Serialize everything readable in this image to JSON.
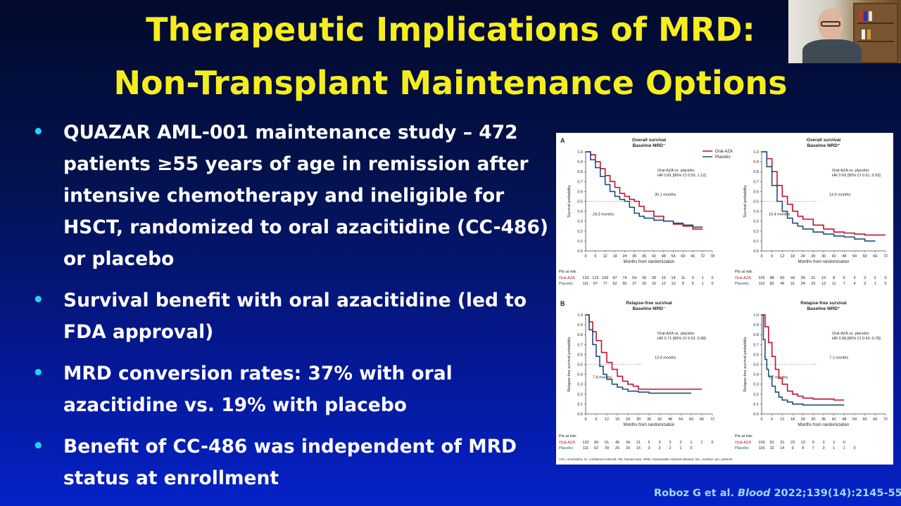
{
  "slide": {
    "title_line1": "Therapeutic Implications of MRD:",
    "title_line2": "Non-Transplant Maintenance Options",
    "bullets": [
      "QUAZAR AML-001 maintenance study – 472 patients ≥55 years of age in remission after intensive chemotherapy and ineligible for HSCT, randomized to oral azacitidine (CC-486) or placebo",
      "Survival benefit with oral azacitidine (led to FDA approval)",
      "MRD conversion rates: 37% with oral azacitidine vs. 19% with placebo",
      "Benefit of CC-486 was independent of MRD status at enrollment"
    ],
    "bullet_symbol": "•",
    "citation": {
      "authors": "Roboz G et al.",
      "journal": "Blood",
      "ref": "2022;139(14):2145-55"
    }
  },
  "colors": {
    "title": "#f6ee1c",
    "bullet_dot": "#22d3f2",
    "oral_aza": "#c8102e",
    "placebo": "#1f4e79",
    "citation": "#9fd8ff"
  },
  "figure": {
    "legend": [
      "Oral-AZA",
      "Placebo"
    ],
    "footnote": "AZA, azacitidine; CI, confidence interval; HR, hazard ratio; MRD, measurable residual disease; No., number; pts, patients.",
    "risk_header": "Pts at risk:",
    "risk_labels": [
      "Oral-AZA",
      "Placebo"
    ],
    "panel_a_label": "A",
    "panel_b_label": "B"
  },
  "chart_data": [
    {
      "type": "line",
      "title": "Overall survival Baseline MRD⁻",
      "xlabel": "Months from randomization",
      "ylabel": "Survival probability",
      "xlim": [
        0,
        78
      ],
      "ylim": [
        0,
        1.0
      ],
      "xticks": [
        0,
        6,
        12,
        18,
        24,
        30,
        36,
        42,
        48,
        54,
        60,
        66,
        72,
        78
      ],
      "yticks": [
        0,
        0.1,
        0.2,
        0.3,
        0.4,
        0.5,
        0.6,
        0.7,
        0.8,
        0.9,
        1.0
      ],
      "annotation": "Oral-AZA vs. placebo: HR 0.81 [95% CI 0.59, 1.12]",
      "medians": [
        "30.1 months",
        "24.3 months"
      ],
      "series": [
        {
          "name": "Oral-AZA",
          "x": [
            0,
            3,
            6,
            9,
            12,
            15,
            18,
            21,
            24,
            27,
            30,
            33,
            36,
            42,
            48,
            54,
            60,
            66,
            72
          ],
          "y": [
            1.0,
            0.97,
            0.9,
            0.83,
            0.76,
            0.7,
            0.64,
            0.58,
            0.55,
            0.52,
            0.5,
            0.45,
            0.4,
            0.35,
            0.3,
            0.27,
            0.25,
            0.22,
            0.22
          ]
        },
        {
          "name": "Placebo",
          "x": [
            0,
            3,
            6,
            9,
            12,
            15,
            18,
            21,
            24,
            27,
            30,
            33,
            36,
            42,
            48,
            54,
            60,
            66,
            72
          ],
          "y": [
            1.0,
            0.92,
            0.84,
            0.75,
            0.67,
            0.6,
            0.55,
            0.52,
            0.5,
            0.44,
            0.38,
            0.35,
            0.33,
            0.31,
            0.3,
            0.28,
            0.26,
            0.24,
            0.24
          ]
        }
      ],
      "at_risk": {
        "Oral-AZA": [
          133,
          123,
          106,
          87,
          74,
          54,
          39,
          28,
          19,
          14,
          11,
          3,
          1,
          0
        ],
        "Placebo": [
          111,
          97,
          77,
          62,
          55,
          37,
          20,
          16,
          12,
          10,
          8,
          5,
          1,
          0
        ]
      }
    },
    {
      "type": "line",
      "title": "Overall survival Baseline MRD⁺",
      "xlabel": "Months from randomization",
      "ylabel": "Survival probability",
      "xlim": [
        0,
        72
      ],
      "ylim": [
        0,
        1.0
      ],
      "xticks": [
        0,
        6,
        12,
        18,
        24,
        30,
        36,
        42,
        48,
        54,
        60,
        66,
        72
      ],
      "yticks": [
        0,
        0.1,
        0.2,
        0.3,
        0.4,
        0.5,
        0.6,
        0.7,
        0.8,
        0.9,
        1.0
      ],
      "annotation": "Oral-AZA vs. placebo: HR 0.69 [95% CI 0.51, 0.93]",
      "medians": [
        "14.6 months",
        "10.4 months"
      ],
      "series": [
        {
          "name": "Oral-AZA",
          "x": [
            0,
            3,
            6,
            9,
            12,
            15,
            18,
            21,
            24,
            30,
            36,
            42,
            48,
            54,
            60,
            66,
            72
          ],
          "y": [
            1.0,
            0.93,
            0.8,
            0.66,
            0.55,
            0.47,
            0.4,
            0.35,
            0.32,
            0.26,
            0.22,
            0.19,
            0.18,
            0.17,
            0.16,
            0.16,
            0.16
          ]
        },
        {
          "name": "Placebo",
          "x": [
            0,
            3,
            6,
            9,
            12,
            15,
            18,
            21,
            24,
            30,
            36,
            42,
            48,
            54,
            60,
            66
          ],
          "y": [
            1.0,
            0.85,
            0.66,
            0.5,
            0.4,
            0.33,
            0.28,
            0.25,
            0.22,
            0.19,
            0.17,
            0.15,
            0.14,
            0.12,
            0.1,
            0.1
          ]
        }
      ],
      "at_risk": {
        "Oral-AZA": [
          103,
          88,
          60,
          44,
          39,
          31,
          19,
          8,
          6,
          3,
          3,
          2,
          0
        ],
        "Placebo": [
          116,
          82,
          46,
          31,
          24,
          20,
          13,
          11,
          7,
          4,
          3,
          1,
          0
        ]
      }
    },
    {
      "type": "line",
      "title": "Relapse-free survival Baseline MRD⁻",
      "xlabel": "Months from randomization",
      "ylabel": "Relapse-free survival probability",
      "xlim": [
        0,
        72
      ],
      "ylim": [
        0,
        1.0
      ],
      "xticks": [
        0,
        6,
        12,
        18,
        24,
        30,
        36,
        42,
        48,
        54,
        60,
        66,
        72
      ],
      "yticks": [
        0,
        0.1,
        0.2,
        0.3,
        0.4,
        0.5,
        0.6,
        0.7,
        0.8,
        0.9,
        1.0
      ],
      "annotation": "Oral-AZA vs. placebo: HR 0.71 [95% CI 0.52, 0.98]",
      "medians": [
        "13.4 months",
        "7.8 months"
      ],
      "series": [
        {
          "name": "Oral-AZA",
          "x": [
            0,
            2,
            4,
            6,
            9,
            12,
            15,
            18,
            21,
            24,
            27,
            30,
            36,
            42,
            48,
            54,
            60,
            66
          ],
          "y": [
            1.0,
            0.93,
            0.83,
            0.74,
            0.62,
            0.52,
            0.45,
            0.38,
            0.33,
            0.3,
            0.28,
            0.25,
            0.25,
            0.25,
            0.25,
            0.25,
            0.25,
            0.25
          ]
        },
        {
          "name": "Placebo",
          "x": [
            0,
            2,
            4,
            6,
            8,
            10,
            12,
            15,
            18,
            21,
            24,
            30,
            36,
            42,
            48,
            54,
            60
          ],
          "y": [
            1.0,
            0.85,
            0.7,
            0.58,
            0.48,
            0.4,
            0.35,
            0.3,
            0.27,
            0.25,
            0.23,
            0.22,
            0.21,
            0.21,
            0.21,
            0.21,
            0.21
          ]
        }
      ],
      "at_risk": {
        "Oral-AZA": [
          133,
          90,
          61,
          45,
          34,
          21,
          5,
          3,
          3,
          2,
          1,
          1,
          0
        ],
        "Placebo": [
          111,
          62,
          39,
          26,
          20,
          15,
          3,
          3,
          2,
          1,
          0
        ]
      }
    },
    {
      "type": "line",
      "title": "Relapse-free survival Baseline MRD⁺",
      "xlabel": "Months from randomization",
      "ylabel": "Relapse-free survival probability",
      "xlim": [
        0,
        72
      ],
      "ylim": [
        0,
        1.0
      ],
      "xticks": [
        0,
        6,
        12,
        18,
        24,
        30,
        36,
        42,
        48,
        54,
        60,
        66,
        72
      ],
      "yticks": [
        0,
        0.1,
        0.2,
        0.3,
        0.4,
        0.5,
        0.6,
        0.7,
        0.8,
        0.9,
        1.0
      ],
      "annotation": "Oral-AZA vs. placebo: HR 0.58 [95% CI 0.43, 0.78]",
      "medians": [
        "7.1 months",
        "2.7 months"
      ],
      "series": [
        {
          "name": "Oral-AZA",
          "x": [
            0,
            2,
            4,
            6,
            8,
            10,
            12,
            15,
            18,
            21,
            24,
            30,
            36,
            42,
            48
          ],
          "y": [
            1.0,
            0.88,
            0.72,
            0.58,
            0.45,
            0.36,
            0.3,
            0.23,
            0.2,
            0.18,
            0.16,
            0.15,
            0.15,
            0.14,
            0.14
          ]
        },
        {
          "name": "Placebo",
          "x": [
            0,
            1,
            2,
            3,
            4,
            6,
            8,
            10,
            12,
            15,
            18,
            24,
            30,
            36,
            42,
            48
          ],
          "y": [
            1.0,
            0.75,
            0.55,
            0.45,
            0.38,
            0.28,
            0.22,
            0.17,
            0.14,
            0.12,
            0.1,
            0.09,
            0.09,
            0.09,
            0.09,
            0.09
          ]
        }
      ],
      "at_risk": {
        "Oral-AZA": [
          103,
          52,
          31,
          23,
          13,
          9,
          3,
          2,
          0
        ],
        "Placebo": [
          116,
          32,
          14,
          9,
          8,
          7,
          3,
          1,
          1,
          0
        ]
      }
    }
  ]
}
